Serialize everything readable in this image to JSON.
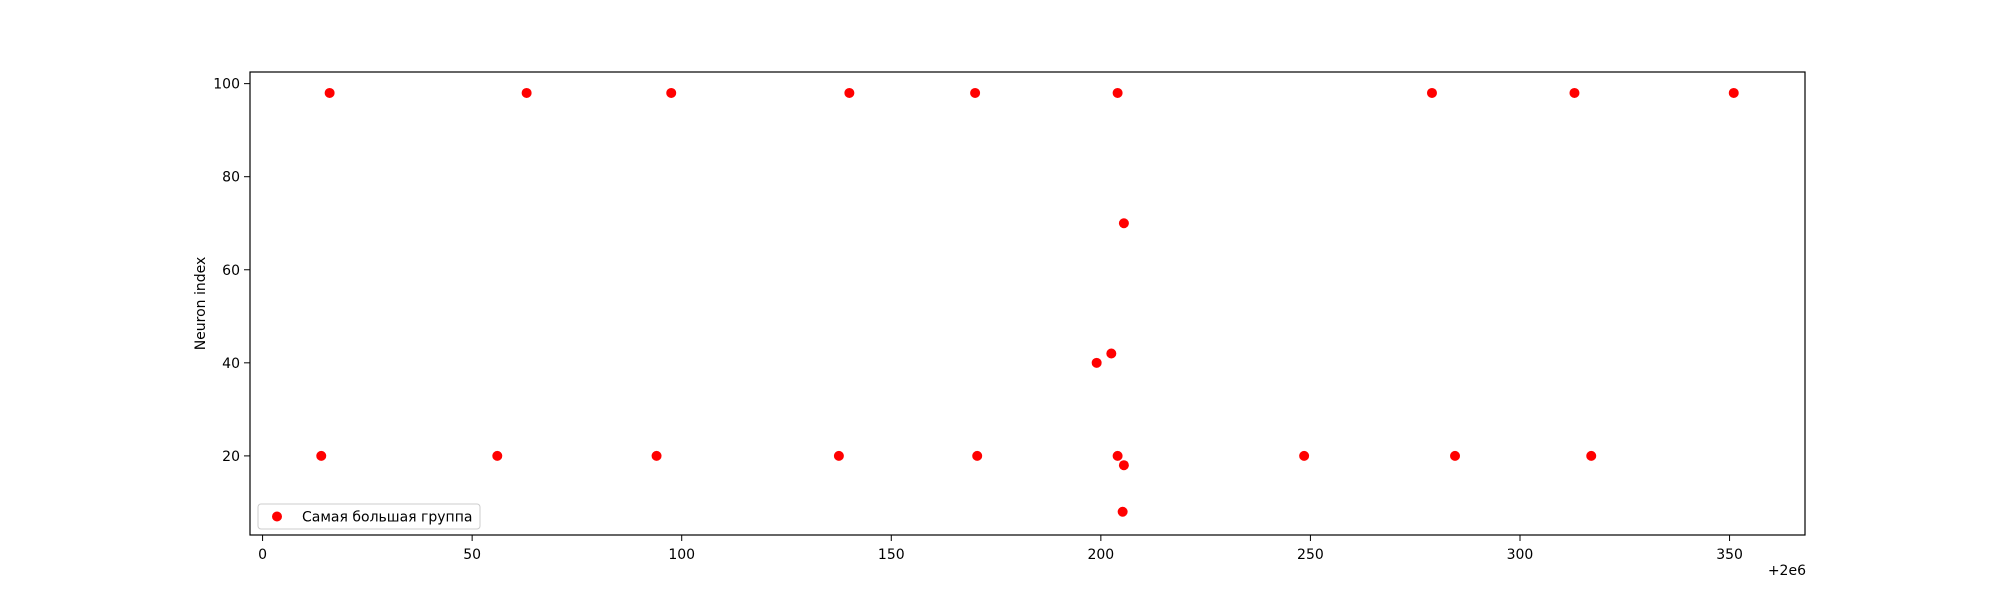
{
  "chart_data": {
    "type": "scatter",
    "title": "",
    "xlabel": "",
    "ylabel": "Neuron index",
    "x_offset_label": "+2e6",
    "xlim": [
      -3,
      368
    ],
    "ylim": [
      3,
      102.5
    ],
    "x_ticks": [
      0,
      50,
      100,
      150,
      200,
      250,
      300,
      350
    ],
    "y_ticks": [
      20,
      40,
      60,
      80,
      100
    ],
    "grid": false,
    "legend_position": "lower-left",
    "series": [
      {
        "name": "Самая большая группа",
        "color": "#ff0000",
        "points": [
          {
            "x": 16,
            "y": 98
          },
          {
            "x": 63,
            "y": 98
          },
          {
            "x": 97.5,
            "y": 98
          },
          {
            "x": 140,
            "y": 98
          },
          {
            "x": 170,
            "y": 98
          },
          {
            "x": 204,
            "y": 98
          },
          {
            "x": 279,
            "y": 98
          },
          {
            "x": 313,
            "y": 98
          },
          {
            "x": 351,
            "y": 98
          },
          {
            "x": 205.5,
            "y": 70
          },
          {
            "x": 202.5,
            "y": 42
          },
          {
            "x": 199,
            "y": 40
          },
          {
            "x": 14,
            "y": 20
          },
          {
            "x": 56,
            "y": 20
          },
          {
            "x": 94,
            "y": 20
          },
          {
            "x": 137.5,
            "y": 20
          },
          {
            "x": 170.5,
            "y": 20
          },
          {
            "x": 204,
            "y": 20
          },
          {
            "x": 248.5,
            "y": 20
          },
          {
            "x": 284.5,
            "y": 20
          },
          {
            "x": 317,
            "y": 20
          },
          {
            "x": 205.5,
            "y": 18
          },
          {
            "x": 205.2,
            "y": 8
          }
        ]
      }
    ]
  }
}
